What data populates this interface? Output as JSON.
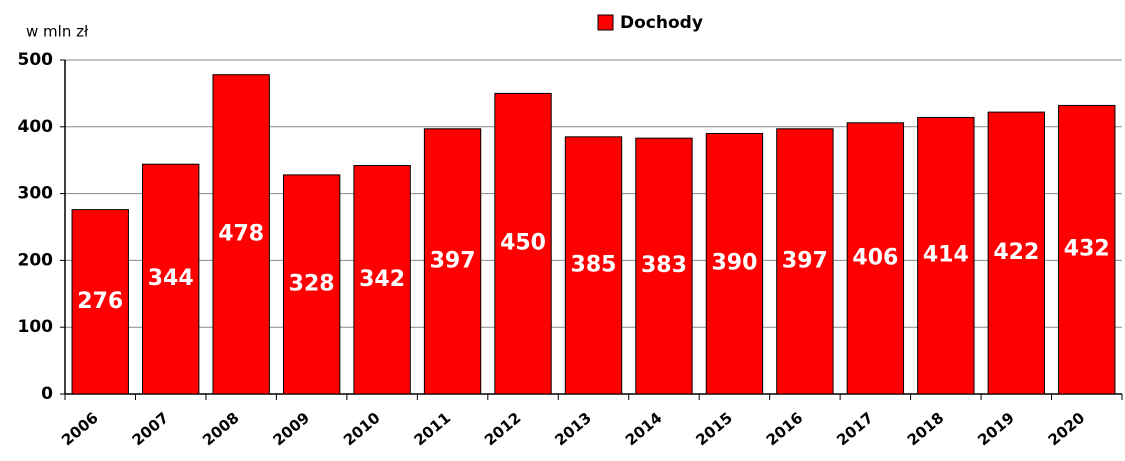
{
  "chart_data": {
    "type": "bar",
    "y_axis_label": "w mln zł",
    "categories": [
      "2006",
      "2007",
      "2008",
      "2009",
      "2010",
      "2011",
      "2012",
      "2013",
      "2014",
      "2015",
      "2016",
      "2017",
      "2018",
      "2019",
      "2020"
    ],
    "series": [
      {
        "name": "Dochody",
        "color": "#ff0000",
        "values": [
          276,
          344,
          478,
          328,
          342,
          397,
          450,
          385,
          383,
          390,
          397,
          406,
          414,
          422,
          432
        ]
      }
    ],
    "ylim": [
      0,
      500
    ],
    "yticks": [
      0,
      100,
      200,
      300,
      400,
      500
    ],
    "grid": true,
    "legend": "top"
  }
}
